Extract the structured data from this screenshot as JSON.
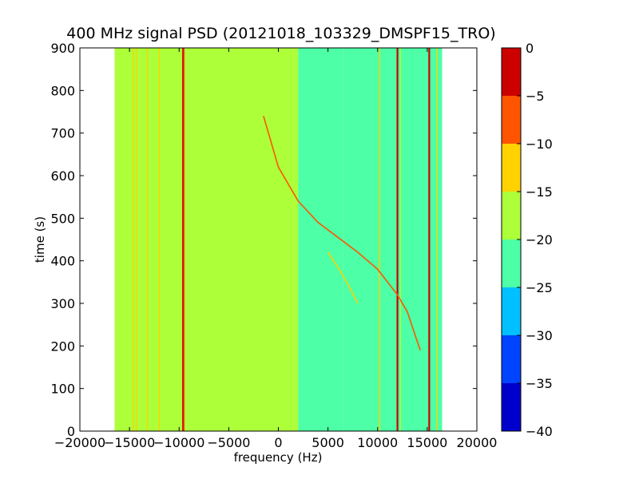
{
  "chart_data": {
    "type": "heatmap",
    "title": "400 MHz signal PSD (20121018_103329_DMSPF15_TRO)",
    "xlabel": "frequency (Hz)",
    "ylabel": "time (s)",
    "xlim": [
      -20000,
      20000
    ],
    "ylim": [
      0,
      900
    ],
    "x_ticks": [
      "−20000",
      "−15000",
      "−10000",
      "−5000",
      "0",
      "5000",
      "10000",
      "15000",
      "20000"
    ],
    "y_ticks": [
      "0",
      "100",
      "200",
      "300",
      "400",
      "500",
      "600",
      "700",
      "800",
      "900"
    ],
    "data_extent_x": [
      -16500,
      16500
    ],
    "data_extent_y": [
      0,
      900
    ],
    "colorbar": {
      "range": [
        -40,
        0
      ],
      "ticks": [
        "−40",
        "−35",
        "−30",
        "−25",
        "−20",
        "−15",
        "−10",
        "−5",
        "0"
      ],
      "levels": [
        {
          "from": -40,
          "to": -35,
          "color": "#0000cd"
        },
        {
          "from": -35,
          "to": -30,
          "color": "#0044ff"
        },
        {
          "from": -30,
          "to": -25,
          "color": "#00c0ff"
        },
        {
          "from": -25,
          "to": -20,
          "color": "#4dffa6"
        },
        {
          "from": -20,
          "to": -15,
          "color": "#adff3a"
        },
        {
          "from": -15,
          "to": -10,
          "color": "#ffd200"
        },
        {
          "from": -10,
          "to": -5,
          "color": "#ff5500"
        },
        {
          "from": -5,
          "to": 0,
          "color": "#cd0000"
        }
      ]
    },
    "background_regions": [
      {
        "x": [
          -16500,
          2000
        ],
        "level": -17.5
      },
      {
        "x": [
          2000,
          6500
        ],
        "level": -21
      },
      {
        "x": [
          6500,
          12000
        ],
        "level": -22.5
      },
      {
        "x": [
          12000,
          16500
        ],
        "level": -22.5
      }
    ],
    "vertical_lines": [
      {
        "x": -14600,
        "level": -12.5
      },
      {
        "x": -14300,
        "level": -12.5
      },
      {
        "x": -13200,
        "level": -12.5
      },
      {
        "x": -12000,
        "level": -12.5
      },
      {
        "x": -9600,
        "level": -2.5
      },
      {
        "x": -9500,
        "level": -7.5
      },
      {
        "x": 10200,
        "level": -12.5
      },
      {
        "x": 12000,
        "level": -2.5
      },
      {
        "x": 12300,
        "level": -17.5
      },
      {
        "x": 15200,
        "level": -2.5
      },
      {
        "x": 16000,
        "level": -12.5
      }
    ],
    "curves": [
      {
        "level": -7.5,
        "points": [
          [
            -1500,
            740
          ],
          [
            0,
            620
          ],
          [
            2000,
            540
          ],
          [
            4000,
            490
          ],
          [
            6000,
            455
          ],
          [
            8000,
            420
          ],
          [
            10000,
            380
          ],
          [
            12000,
            320
          ],
          [
            13000,
            280
          ],
          [
            14000,
            210
          ],
          [
            14300,
            190
          ]
        ]
      },
      {
        "level": -12.5,
        "points": [
          [
            5000,
            420
          ],
          [
            6000,
            385
          ],
          [
            7000,
            345
          ],
          [
            8000,
            300
          ]
        ]
      }
    ]
  }
}
